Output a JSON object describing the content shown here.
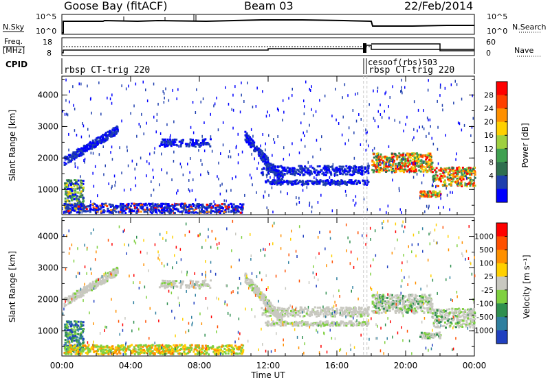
{
  "header": {
    "title": "Goose Bay (fitACF)",
    "beam": "Beam 03",
    "date": "22/Feb/2014"
  },
  "noise_panel": {
    "left_label": "N.Sky",
    "right_label": "N.Search",
    "left_ticks": [
      "10^5",
      "10^0"
    ],
    "right_ticks": [
      "10^5",
      "10^0"
    ]
  },
  "freq_panel": {
    "left_label_1": "Freq.",
    "left_label_2": "[MHz]",
    "right_label": "Nave",
    "left_ticks": [
      "18",
      "8"
    ],
    "right_ticks": [
      "60",
      "0"
    ]
  },
  "cpid_panel": {
    "label": "CPID",
    "program_1": "rbsp CT-trig 220",
    "program_2": "rbsp CT-trig 220",
    "program_3": "cesoof(rbs)503"
  },
  "x_axis": {
    "label": "Time UT",
    "ticks": [
      "00:00",
      "04:00",
      "08:00",
      "12:00",
      "16:00",
      "20:00",
      "00:00"
    ]
  },
  "chart_data": [
    {
      "type": "heatmap",
      "name": "power",
      "ylabel": "Slant Range [km]",
      "yticks": [
        "4000",
        "3000",
        "2000",
        "1000"
      ],
      "ylim": [
        200,
        4600
      ],
      "xlim": [
        0,
        24
      ],
      "colorbar_label": "Power [dB]",
      "colorbar_ticks": [
        "28",
        "24",
        "20",
        "16",
        "12",
        "8",
        "4"
      ],
      "colorbar_colors": [
        "#0000ff",
        "#1f3fae",
        "#2f6f4f",
        "#3fa050",
        "#9fd040",
        "#ffd000",
        "#ff9000",
        "#ff4000",
        "#ff0000"
      ]
    },
    {
      "type": "heatmap",
      "name": "velocity",
      "ylabel": "Slant Range [km]",
      "yticks": [
        "4000",
        "3000",
        "2000",
        "1000"
      ],
      "ylim": [
        200,
        4600
      ],
      "xlim": [
        0,
        24
      ],
      "colorbar_label": "Velocity [m s⁻¹]",
      "colorbar_ticks": [
        "1000",
        "500",
        "100",
        "25",
        "-25",
        "-100",
        "-500",
        "-1000"
      ],
      "colorbar_colors": [
        "#2040c0",
        "#2f7f9f",
        "#2f8f4f",
        "#7fd040",
        "#c8c8c0",
        "#ffd000",
        "#ff9000",
        "#ff5000",
        "#ff0000"
      ]
    }
  ]
}
